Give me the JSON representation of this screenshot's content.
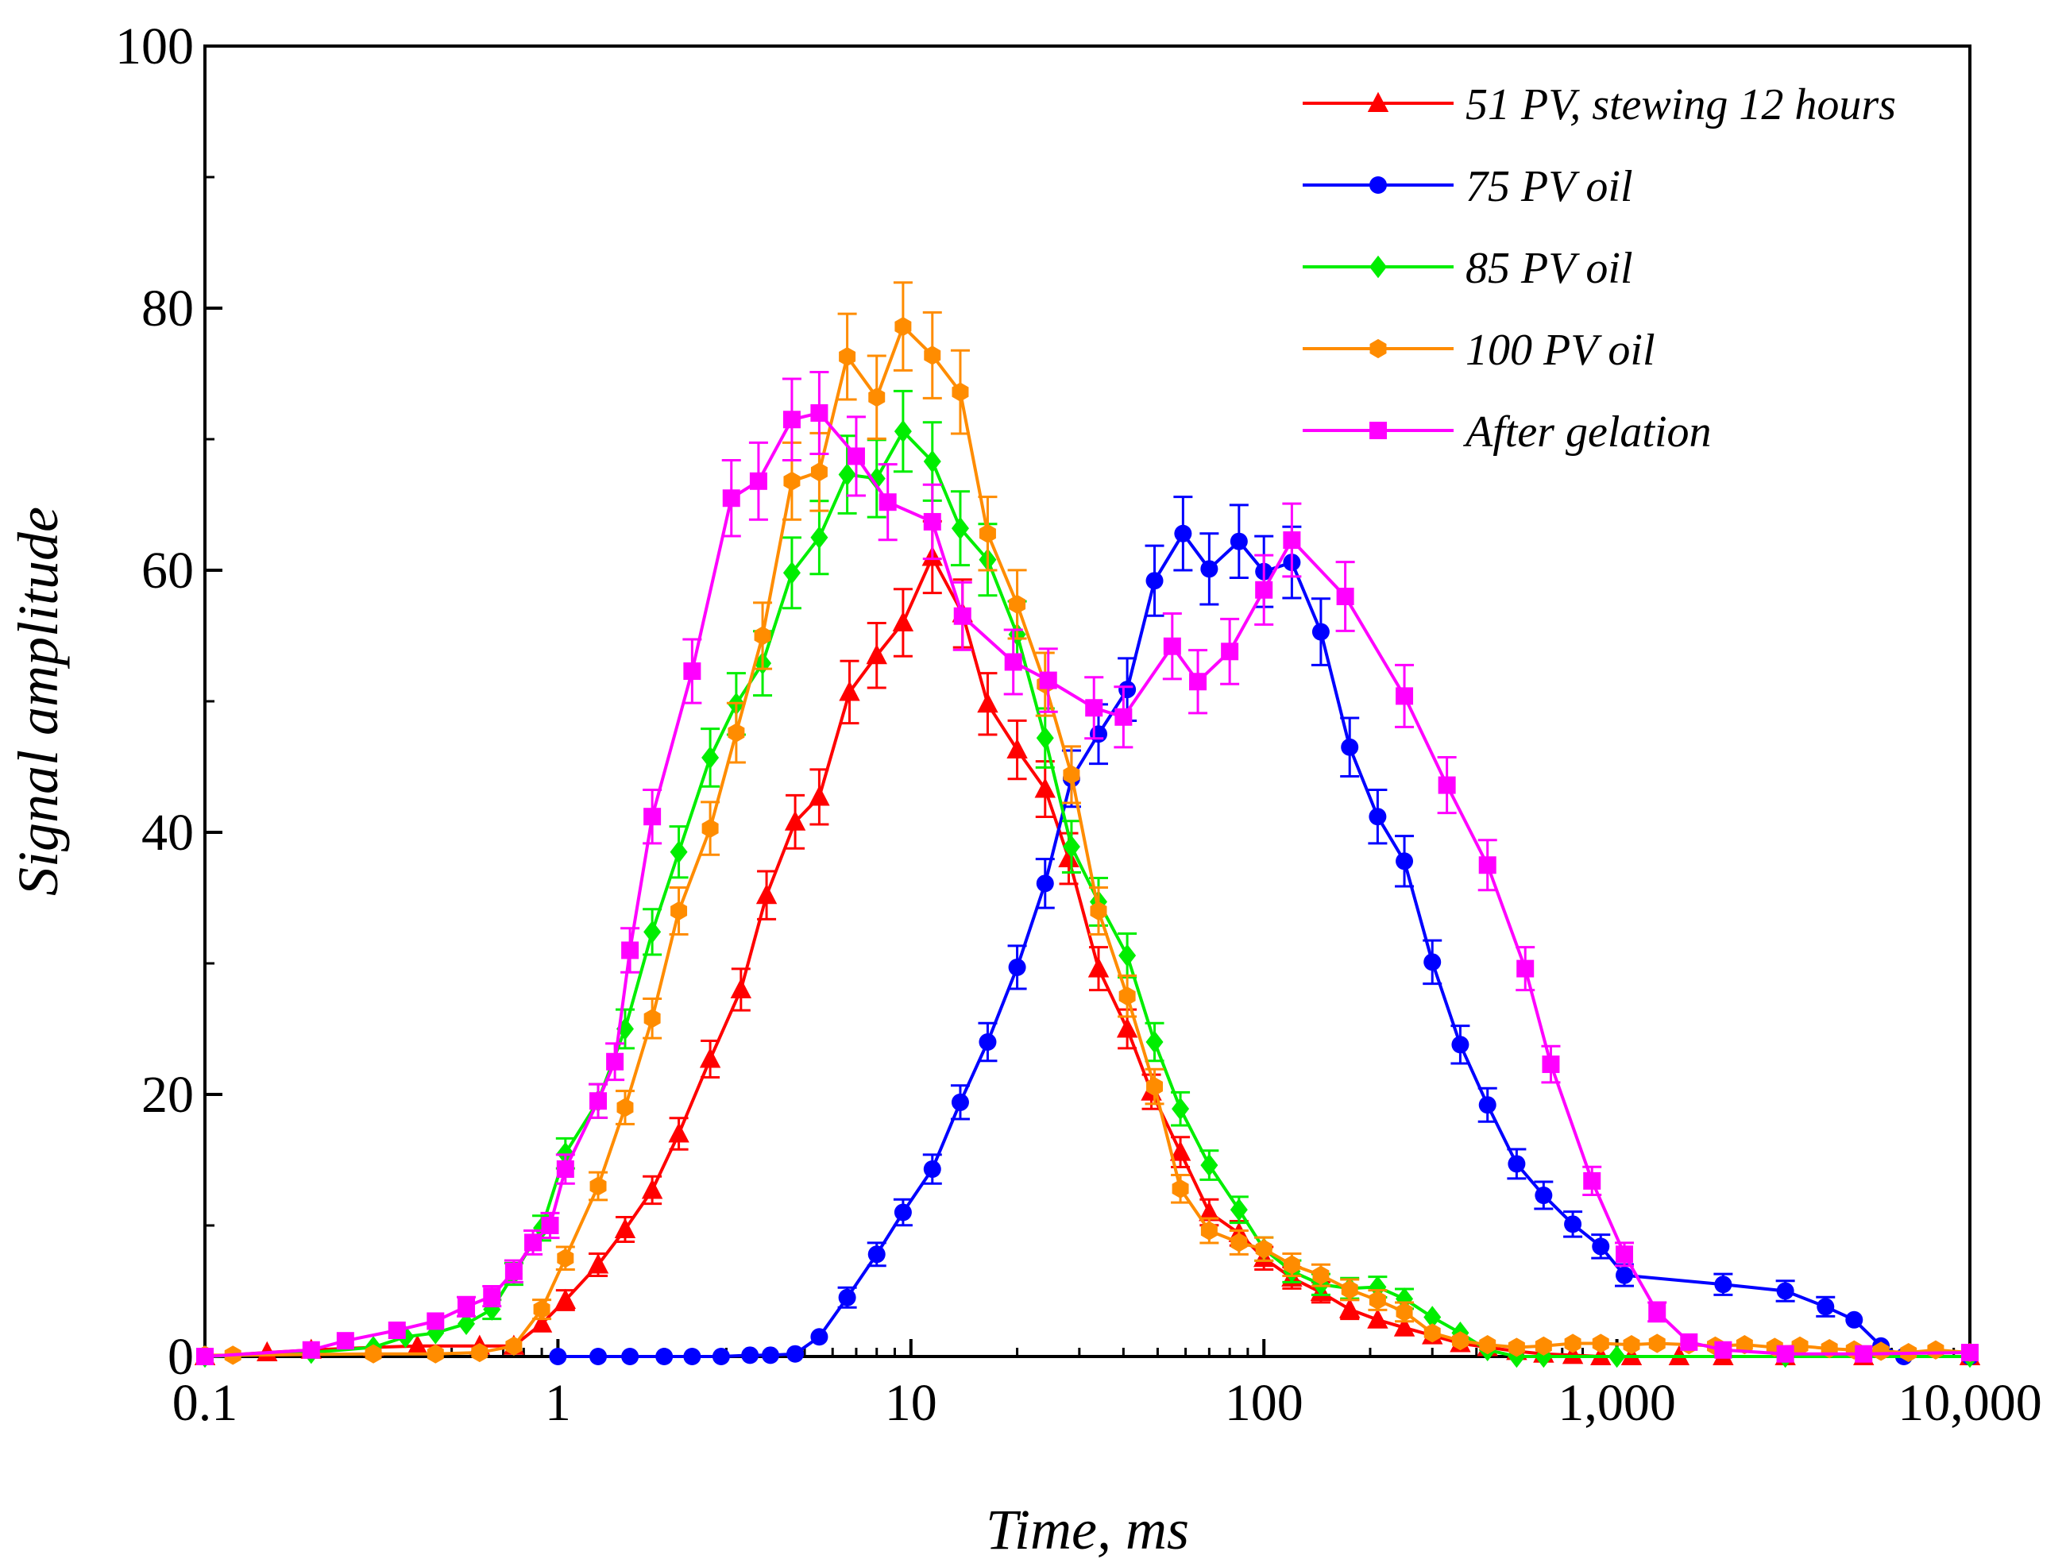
{
  "chart_data": {
    "type": "line",
    "title": "",
    "xlabel": "Time, ms",
    "ylabel": "Signal amplitude",
    "xscale": "log",
    "xlim": [
      0.1,
      10000
    ],
    "ylim": [
      0,
      100
    ],
    "xticks": [
      0.1,
      1,
      10,
      100,
      1000,
      10000
    ],
    "xtick_labels": [
      "0.1",
      "1",
      "10",
      "100",
      "1,000",
      "10,000"
    ],
    "yticks": [
      0,
      20,
      40,
      60,
      80,
      100
    ],
    "ytick_labels": [
      "0",
      "20",
      "40",
      "60",
      "80",
      "100"
    ],
    "grid": false,
    "legend_position": "top-right",
    "series": [
      {
        "name": "51 PV, stewing 12 hours",
        "color": "#ff0000",
        "marker": "triangle",
        "x": [
          0.1,
          0.15,
          0.2,
          0.3,
          0.4,
          0.6,
          0.75,
          0.9,
          1.05,
          1.3,
          1.55,
          1.85,
          2.2,
          2.7,
          3.3,
          3.9,
          4.7,
          5.5,
          6.7,
          8,
          9.5,
          11.5,
          14,
          16.5,
          20,
          24,
          28,
          34,
          41,
          48,
          58,
          70,
          85,
          100,
          120,
          145,
          175,
          210,
          250,
          300,
          360,
          430,
          520,
          620,
          750,
          900,
          1100,
          1500,
          2000,
          3000,
          5000,
          10000
        ],
        "y": [
          0,
          0.3,
          0.5,
          0.7,
          0.8,
          0.8,
          0.8,
          2.5,
          4.3,
          7,
          9.7,
          12.7,
          17,
          22.7,
          28,
          35.2,
          40.8,
          42.7,
          50.7,
          53.5,
          56,
          61,
          56.7,
          49.8,
          46.3,
          43.3,
          38,
          29.6,
          25,
          20.2,
          15.6,
          11,
          9.4,
          7.5,
          6,
          4.9,
          3.6,
          2.8,
          2.2,
          1.6,
          1,
          0.7,
          0.4,
          0.2,
          0.1,
          0,
          0,
          0,
          0,
          0,
          0,
          0
        ]
      },
      {
        "name": "75 PV oil",
        "color": "#0000ff",
        "marker": "circle",
        "x": [
          1,
          1.3,
          1.6,
          2,
          2.4,
          2.9,
          3.5,
          4,
          4.7,
          5.5,
          6.6,
          8,
          9.5,
          11.5,
          13.8,
          16.5,
          20,
          24,
          28.5,
          34,
          41,
          49,
          59,
          70,
          85,
          100,
          120,
          145,
          175,
          210,
          250,
          300,
          360,
          430,
          520,
          620,
          750,
          900,
          1050,
          2000,
          3000,
          3900,
          4700,
          5600,
          6500,
          10000
        ],
        "y": [
          0,
          0,
          0,
          0,
          0,
          0,
          0.1,
          0.1,
          0.2,
          1.5,
          4.5,
          7.8,
          11,
          14.3,
          19.4,
          24,
          29.7,
          36.1,
          44.1,
          47.5,
          50.9,
          59.2,
          62.8,
          60.1,
          62.2,
          59.9,
          60.6,
          55.3,
          46.5,
          41.2,
          37.8,
          30.1,
          23.8,
          19.2,
          14.7,
          12.3,
          10.1,
          8.4,
          6.2,
          5.5,
          5,
          3.8,
          2.8,
          0.8,
          0,
          0
        ]
      },
      {
        "name": "85 PV oil",
        "color": "#00ee00",
        "marker": "diamond",
        "x": [
          0.1,
          0.2,
          0.3,
          0.37,
          0.45,
          0.55,
          0.65,
          0.75,
          0.9,
          1.05,
          1.3,
          1.55,
          1.85,
          2.2,
          2.7,
          3.2,
          3.8,
          4.6,
          5.5,
          6.6,
          8,
          9.5,
          11.5,
          13.8,
          16.5,
          20,
          24,
          28.5,
          34,
          41,
          49,
          58,
          70,
          85,
          100,
          120,
          145,
          175,
          210,
          250,
          300,
          360,
          430,
          520,
          620,
          1000,
          3000,
          10000
        ],
        "y": [
          0,
          0.3,
          0.7,
          1.5,
          1.8,
          2.5,
          3.6,
          6.3,
          9.8,
          15.5,
          19.5,
          25,
          32.4,
          38.5,
          45.7,
          49.8,
          52.9,
          59.8,
          62.5,
          67.3,
          67,
          70.6,
          68.3,
          63.2,
          60.8,
          55.1,
          47.2,
          38.9,
          34.7,
          30.6,
          24,
          18.9,
          14.6,
          11.2,
          8.2,
          6.5,
          5.5,
          5.2,
          5.3,
          4.4,
          3,
          1.8,
          0.5,
          0,
          0,
          0,
          0,
          0
        ]
      },
      {
        "name": "100 PV oil",
        "color": "#ff8c00",
        "marker": "hexagon",
        "x": [
          0.1,
          0.12,
          0.3,
          0.45,
          0.6,
          0.75,
          0.9,
          1.05,
          1.3,
          1.55,
          1.85,
          2.2,
          2.7,
          3.2,
          3.8,
          4.6,
          5.5,
          6.6,
          8,
          9.5,
          11.5,
          13.8,
          16.5,
          20,
          24,
          28.5,
          34,
          41,
          49,
          58,
          70,
          85,
          100,
          120,
          145,
          175,
          210,
          250,
          300,
          360,
          430,
          520,
          620,
          750,
          900,
          1100,
          1300,
          1600,
          1900,
          2300,
          2800,
          3300,
          4000,
          4700,
          5600,
          6700,
          8000,
          10000
        ],
        "y": [
          0.1,
          0.1,
          0.2,
          0.2,
          0.3,
          0.8,
          3.6,
          7.5,
          13,
          19,
          25.8,
          34,
          40.3,
          47.6,
          55,
          66.8,
          67.5,
          76.3,
          73.2,
          78.6,
          76.4,
          73.6,
          62.8,
          57.4,
          51.3,
          44.4,
          34,
          27.5,
          20.6,
          12.8,
          9.6,
          8.7,
          8.2,
          7,
          6.2,
          5.1,
          4.3,
          3.4,
          1.8,
          1.2,
          0.9,
          0.7,
          0.8,
          1,
          1,
          0.9,
          1,
          0.9,
          0.8,
          0.9,
          0.7,
          0.8,
          0.6,
          0.5,
          0.4,
          0.3,
          0.5,
          0.3
        ]
      },
      {
        "name": "After gelation",
        "color": "#ff00ff",
        "marker": "square",
        "x": [
          0.1,
          0.2,
          0.25,
          0.35,
          0.45,
          0.55,
          0.65,
          0.75,
          0.85,
          0.95,
          1.05,
          1.3,
          1.45,
          1.6,
          1.85,
          2.4,
          3.1,
          3.7,
          4.6,
          5.5,
          7,
          8.6,
          11.5,
          14,
          19.5,
          24.5,
          33,
          40,
          55,
          65,
          80,
          100,
          120,
          170,
          250,
          330,
          430,
          550,
          650,
          850,
          1050,
          1300,
          1600,
          2000,
          3000,
          5000,
          10000
        ],
        "y": [
          0,
          0.5,
          1.2,
          2,
          2.7,
          3.8,
          4.6,
          6.5,
          8.7,
          10,
          14.3,
          19.5,
          22.5,
          31,
          41.2,
          52.3,
          65.5,
          66.8,
          71.5,
          72,
          68.7,
          65.2,
          63.7,
          56.5,
          53,
          51.6,
          49.5,
          48.8,
          54.2,
          51.5,
          53.8,
          58.5,
          62.3,
          58,
          50.4,
          43.6,
          37.5,
          29.6,
          22.3,
          13.4,
          7.8,
          3.4,
          1.1,
          0.5,
          0.2,
          0.2,
          0.3
        ]
      }
    ]
  }
}
